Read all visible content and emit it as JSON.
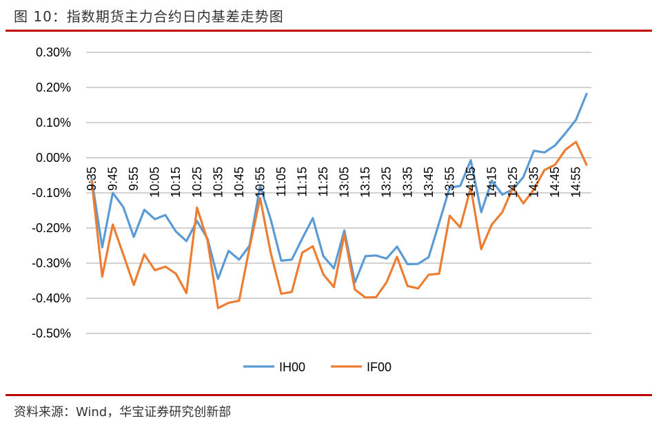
{
  "figure": {
    "title": "图 10：指数期货主力合约日内基差走势图",
    "source": "资料来源：Wind，华宝证券研究创新部"
  },
  "colors": {
    "IH00": "#5b9bd5",
    "IF00": "#ed7d31",
    "rule": "#c00000",
    "grid": "#a6a6a6"
  },
  "chart_data": {
    "type": "line",
    "title": "",
    "xlabel": "",
    "ylabel": "",
    "ylim": [
      -0.5,
      0.3
    ],
    "ytick_labels": [
      "0.30%",
      "0.20%",
      "0.10%",
      "0.00%",
      "-0.10%",
      "-0.20%",
      "-0.30%",
      "-0.40%",
      "-0.50%"
    ],
    "ytick_values": [
      0.3,
      0.2,
      0.1,
      0.0,
      -0.1,
      -0.2,
      -0.3,
      -0.4,
      -0.5
    ],
    "grid": "horizontal",
    "legend": "bottom",
    "x": [
      "9:35",
      "9:40",
      "9:45",
      "9:50",
      "9:55",
      "10:00",
      "10:05",
      "10:10",
      "10:15",
      "10:20",
      "10:25",
      "10:30",
      "10:35",
      "10:40",
      "10:45",
      "10:50",
      "10:55",
      "11:00",
      "11:05",
      "11:10",
      "11:15",
      "11:20",
      "11:25",
      "11:30",
      "13:05",
      "13:10",
      "13:15",
      "13:20",
      "13:25",
      "13:30",
      "13:35",
      "13:40",
      "13:45",
      "13:50",
      "13:55",
      "14:00",
      "14:05",
      "14:10",
      "14:15",
      "14:20",
      "14:25",
      "14:30",
      "14:35",
      "14:40",
      "14:45",
      "14:50",
      "14:55",
      "15:00"
    ],
    "x_tick_labels": [
      "9:35",
      "9:45",
      "9:55",
      "10:05",
      "10:15",
      "10:25",
      "10:35",
      "10:45",
      "10:55",
      "11:05",
      "11:15",
      "11:25",
      "13:05",
      "13:15",
      "13:25",
      "13:35",
      "13:45",
      "13:55",
      "14:05",
      "14:15",
      "14:25",
      "14:35",
      "14:45",
      "14:55"
    ],
    "series": [
      {
        "name": "IH00",
        "values": [
          -0.06,
          -0.255,
          -0.1,
          -0.14,
          -0.225,
          -0.148,
          -0.175,
          -0.163,
          -0.21,
          -0.237,
          -0.18,
          -0.23,
          -0.345,
          -0.265,
          -0.29,
          -0.25,
          -0.08,
          -0.175,
          -0.293,
          -0.29,
          -0.23,
          -0.172,
          -0.28,
          -0.315,
          -0.207,
          -0.355,
          -0.28,
          -0.278,
          -0.287,
          -0.253,
          -0.303,
          -0.302,
          -0.283,
          -0.185,
          -0.085,
          -0.08,
          -0.007,
          -0.155,
          -0.065,
          -0.105,
          -0.09,
          -0.055,
          0.02,
          0.015,
          0.035,
          0.07,
          0.108,
          0.182
        ]
      },
      {
        "name": "IF00",
        "values": [
          -0.065,
          -0.338,
          -0.19,
          -0.275,
          -0.362,
          -0.275,
          -0.32,
          -0.31,
          -0.33,
          -0.385,
          -0.142,
          -0.235,
          -0.428,
          -0.413,
          -0.407,
          -0.255,
          -0.115,
          -0.27,
          -0.387,
          -0.382,
          -0.27,
          -0.252,
          -0.332,
          -0.368,
          -0.218,
          -0.375,
          -0.398,
          -0.397,
          -0.355,
          -0.282,
          -0.365,
          -0.372,
          -0.333,
          -0.33,
          -0.165,
          -0.198,
          -0.085,
          -0.26,
          -0.19,
          -0.155,
          -0.085,
          -0.13,
          -0.09,
          -0.035,
          -0.02,
          0.023,
          0.045,
          -0.02
        ]
      }
    ]
  }
}
